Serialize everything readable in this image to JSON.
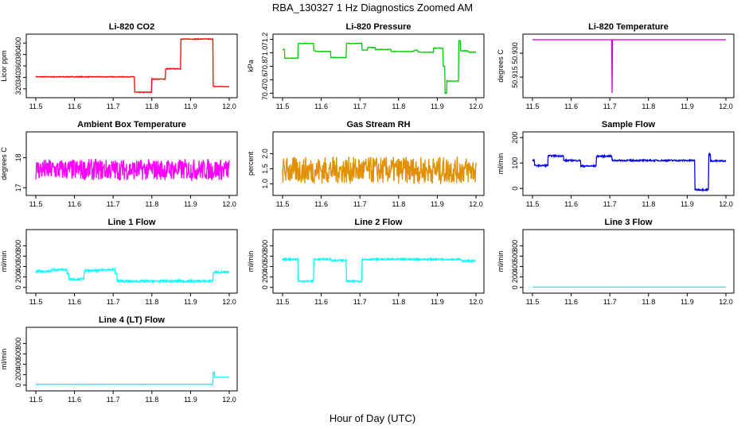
{
  "figure": {
    "title": "RBA_130327  1 Hz Diagnostics Zoomed AM",
    "xlabel": "Hour of Day (UTC)"
  },
  "chart_data": [
    {
      "type": "line",
      "title": "Li-820 CO2",
      "ylabel": "Licor ppm",
      "color": "#ff0000",
      "xlim": [
        11.5,
        12.0
      ],
      "ylim": [
        310,
        410
      ],
      "xticks": [
        11.5,
        11.6,
        11.7,
        11.8,
        11.9,
        12.0
      ],
      "yticks": [
        320,
        340,
        360,
        380,
        400
      ],
      "noise": 0.6,
      "segments": [
        [
          11.5,
          11.755,
          341
        ],
        [
          11.755,
          11.8,
          314
        ],
        [
          11.8,
          11.835,
          337
        ],
        [
          11.835,
          11.875,
          355
        ],
        [
          11.875,
          11.958,
          407
        ],
        [
          11.958,
          12.0,
          324
        ]
      ]
    },
    {
      "type": "line",
      "title": "Li-820 Pressure",
      "ylabel": "kPa",
      "color": "#00cc00",
      "xlim": [
        11.5,
        12.0
      ],
      "ylim": [
        70.38,
        71.23
      ],
      "xticks": [
        11.5,
        11.6,
        11.7,
        11.8,
        11.9,
        12.0
      ],
      "yticks": [
        70.4,
        70.6,
        70.8,
        71.0,
        71.2
      ],
      "noise": 0.004,
      "segments": [
        [
          11.5,
          11.505,
          71.05
        ],
        [
          11.505,
          11.54,
          70.92
        ],
        [
          11.54,
          11.58,
          71.14
        ],
        [
          11.58,
          11.585,
          71.03
        ],
        [
          11.585,
          11.625,
          71.02
        ],
        [
          11.625,
          11.665,
          70.93
        ],
        [
          11.665,
          11.705,
          71.14
        ],
        [
          11.705,
          11.72,
          71.04
        ],
        [
          11.72,
          11.74,
          71.08
        ],
        [
          11.74,
          11.78,
          71.05
        ],
        [
          11.78,
          11.84,
          71.02
        ],
        [
          11.84,
          11.85,
          71.04
        ],
        [
          11.85,
          11.89,
          71.01
        ],
        [
          11.89,
          11.915,
          71.07
        ],
        [
          11.915,
          11.92,
          70.8
        ],
        [
          11.92,
          11.925,
          70.4
        ],
        [
          11.925,
          11.955,
          70.58
        ],
        [
          11.955,
          11.96,
          71.18
        ],
        [
          11.96,
          11.98,
          71.03
        ],
        [
          11.98,
          12.0,
          71.01
        ]
      ]
    },
    {
      "type": "line",
      "title": "Li-820 Temperature",
      "ylabel": "degrees C",
      "color": "#cc00cc",
      "xlim": [
        11.5,
        12.0
      ],
      "ylim": [
        50.904,
        50.94
      ],
      "xticks": [
        11.5,
        11.6,
        11.7,
        11.8,
        11.9,
        12.0
      ],
      "yticks": [
        50.915,
        50.93
      ],
      "ytick_labels": [
        "50.915",
        "50.930"
      ],
      "noise": 0,
      "segments": [
        [
          11.5,
          11.705,
          50.9385
        ],
        [
          11.705,
          11.706,
          50.905
        ],
        [
          11.706,
          12.0,
          50.9385
        ]
      ]
    },
    {
      "type": "line",
      "title": "Ambient Box Temperature",
      "ylabel": "degrees C",
      "color": "#ff00ff",
      "xlim": [
        11.5,
        12.0
      ],
      "ylim": [
        16.85,
        18.75
      ],
      "xticks": [
        11.5,
        11.6,
        11.7,
        11.8,
        11.9,
        12.0
      ],
      "yticks": [
        17.0,
        18.0
      ],
      "noise": 0.35,
      "segments": [
        [
          11.5,
          12.0,
          17.6
        ]
      ]
    },
    {
      "type": "line",
      "title": "Gas Stream RH",
      "ylabel": "percent",
      "color": "#e09000",
      "xlim": [
        11.5,
        12.0
      ],
      "ylim": [
        0.72,
        2.62
      ],
      "xticks": [
        11.5,
        11.6,
        11.7,
        11.8,
        11.9,
        12.0
      ],
      "yticks": [
        1.0,
        1.5,
        2.0
      ],
      "noise": 0.45,
      "segments": [
        [
          11.5,
          12.0,
          1.45
        ]
      ]
    },
    {
      "type": "line",
      "title": "Sample Flow",
      "ylabel": "ml/min",
      "color": "#0000ee",
      "xlim": [
        11.5,
        12.0
      ],
      "ylim": [
        -15,
        210
      ],
      "xticks": [
        11.5,
        11.6,
        11.7,
        11.8,
        11.9,
        12.0
      ],
      "yticks": [
        0,
        100,
        200
      ],
      "noise": 3,
      "segments": [
        [
          11.5,
          11.505,
          110
        ],
        [
          11.505,
          11.54,
          90
        ],
        [
          11.54,
          11.58,
          128
        ],
        [
          11.58,
          11.625,
          110
        ],
        [
          11.625,
          11.665,
          88
        ],
        [
          11.665,
          11.705,
          127
        ],
        [
          11.705,
          11.92,
          110
        ],
        [
          11.92,
          11.955,
          -5
        ],
        [
          11.955,
          11.96,
          135
        ],
        [
          11.96,
          12.0,
          108
        ]
      ]
    },
    {
      "type": "line",
      "title": "Line 1 Flow",
      "ylabel": "ml/min",
      "color": "#00ffff",
      "xlim": [
        11.5,
        12.0
      ],
      "ylim": [
        -50,
        1050
      ],
      "xticks": [
        11.5,
        11.6,
        11.7,
        11.8,
        11.9,
        12.0
      ],
      "yticks": [
        0,
        200,
        400,
        600,
        800
      ],
      "noise": 20,
      "segments": [
        [
          11.5,
          11.54,
          310
        ],
        [
          11.54,
          11.58,
          340
        ],
        [
          11.58,
          11.585,
          260
        ],
        [
          11.585,
          11.625,
          160
        ],
        [
          11.625,
          11.665,
          320
        ],
        [
          11.665,
          11.705,
          340
        ],
        [
          11.705,
          11.71,
          270
        ],
        [
          11.71,
          11.958,
          120
        ],
        [
          11.958,
          12.0,
          290
        ]
      ]
    },
    {
      "type": "line",
      "title": "Line 2 Flow",
      "ylabel": "ml/min",
      "color": "#00ffff",
      "xlim": [
        11.5,
        12.0
      ],
      "ylim": [
        -50,
        1050
      ],
      "xticks": [
        11.5,
        11.6,
        11.7,
        11.8,
        11.9,
        12.0
      ],
      "yticks": [
        0,
        200,
        400,
        600,
        800
      ],
      "noise": 15,
      "segments": [
        [
          11.5,
          11.54,
          540
        ],
        [
          11.54,
          11.58,
          120
        ],
        [
          11.58,
          11.625,
          540
        ],
        [
          11.625,
          11.665,
          520
        ],
        [
          11.665,
          11.705,
          120
        ],
        [
          11.705,
          11.96,
          540
        ],
        [
          11.96,
          12.0,
          510
        ]
      ]
    },
    {
      "type": "line",
      "title": "Line 3 Flow",
      "ylabel": "ml/min",
      "color": "#00ffff",
      "xlim": [
        11.5,
        12.0
      ],
      "ylim": [
        -50,
        1050
      ],
      "xticks": [
        11.5,
        11.6,
        11.7,
        11.8,
        11.9,
        12.0
      ],
      "yticks": [
        0,
        200,
        400,
        600,
        800
      ],
      "noise": 1,
      "segments": [
        [
          11.5,
          12.0,
          5
        ]
      ]
    },
    {
      "type": "line",
      "title": "Line 4 (LT) Flow",
      "ylabel": "ml/min",
      "color": "#00ffff",
      "xlim": [
        11.5,
        12.0
      ],
      "ylim": [
        -50,
        1050
      ],
      "xticks": [
        11.5,
        11.6,
        11.7,
        11.8,
        11.9,
        12.0
      ],
      "yticks": [
        0,
        200,
        400,
        600,
        800
      ],
      "noise": 2,
      "segments": [
        [
          11.5,
          11.958,
          15
        ],
        [
          11.958,
          11.962,
          250
        ],
        [
          11.962,
          12.0,
          150
        ]
      ]
    }
  ]
}
